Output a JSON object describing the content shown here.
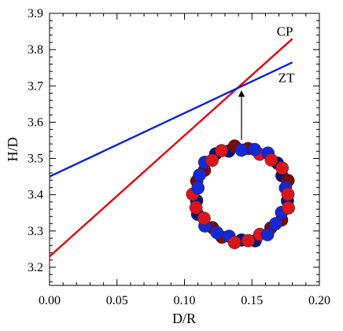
{
  "chart_data": {
    "type": "line",
    "title": "",
    "xlabel": "D/R",
    "ylabel": "H/D",
    "xlim": [
      0.0,
      0.2
    ],
    "ylim": [
      3.15,
      3.9
    ],
    "x_ticks": [
      "0.00",
      "0.05",
      "0.10",
      "0.15",
      "0.20"
    ],
    "y_ticks": [
      "3.2",
      "3.3",
      "3.4",
      "3.5",
      "3.6",
      "3.7",
      "3.8",
      "3.9"
    ],
    "grid": false,
    "series": [
      {
        "name": "CP",
        "color": "#e8000b",
        "x": [
          0.0,
          0.18
        ],
        "y": [
          3.23,
          3.83
        ]
      },
      {
        "name": "ZT",
        "color": "#0a1ee6",
        "x": [
          0.0,
          0.18
        ],
        "y": [
          3.45,
          3.765
        ]
      }
    ],
    "annotation": {
      "type": "arrow",
      "points_to": {
        "x": 0.1405,
        "y": 3.69
      },
      "inset": "torus-ring-icon"
    }
  }
}
